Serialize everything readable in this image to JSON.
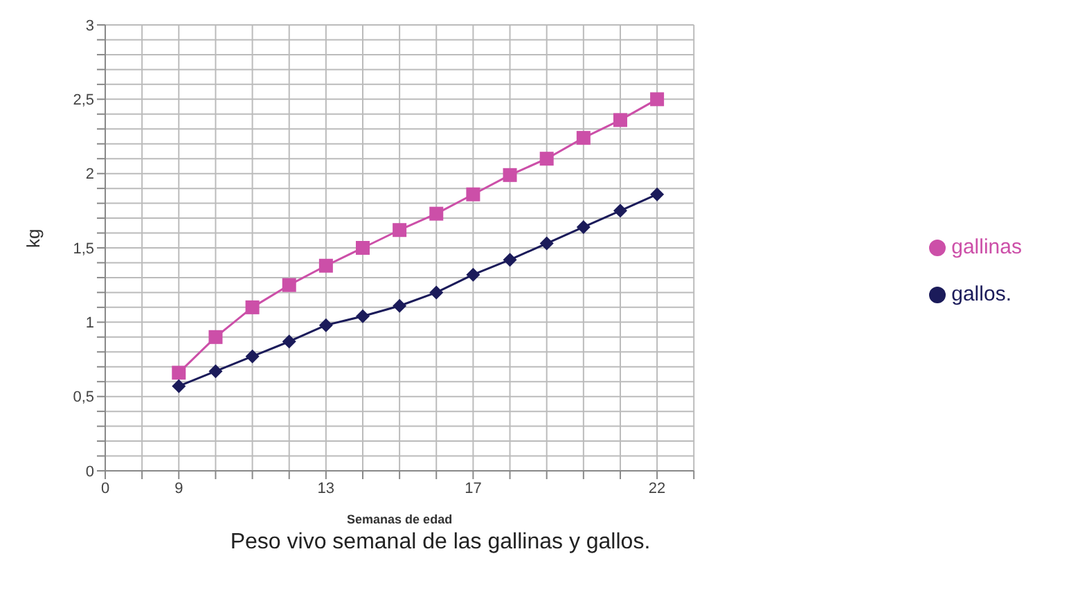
{
  "chart_data": {
    "type": "line",
    "title": "Peso vivo semanal de las gallinas y gallos.",
    "xlabel": "Semanas de edad",
    "ylabel": "kg",
    "categories": [
      "0",
      null,
      "9",
      null,
      null,
      null,
      "13",
      null,
      null,
      null,
      "17",
      null,
      null,
      null,
      null,
      "22"
    ],
    "series": [
      {
        "name": "gallinas",
        "color": "#cc4fa8",
        "marker": "square",
        "values": [
          null,
          null,
          0.66,
          0.9,
          1.1,
          1.25,
          1.38,
          1.5,
          1.62,
          1.73,
          1.86,
          1.99,
          2.1,
          2.24,
          2.36,
          2.5
        ]
      },
      {
        "name": "gallos.",
        "color": "#1b1b5a",
        "marker": "diamond",
        "values": [
          null,
          null,
          0.57,
          0.67,
          0.77,
          0.87,
          0.98,
          1.04,
          1.11,
          1.2,
          1.32,
          1.42,
          1.53,
          1.64,
          1.75,
          1.86
        ]
      }
    ],
    "ylim": [
      0,
      3
    ],
    "yticks": [
      0,
      {
        "value": 0.1,
        "label": null
      },
      {
        "value": 0.2,
        "label": null
      },
      {
        "value": 0.3,
        "label": null
      },
      {
        "value": 0.4,
        "label": null
      },
      {
        "value": 0.5,
        "label": "0,5"
      },
      {
        "value": 0.6,
        "label": null
      },
      {
        "value": 0.7,
        "label": null
      },
      {
        "value": 0.8,
        "label": null
      },
      {
        "value": 0.9,
        "label": null
      },
      1,
      {
        "value": 1.1,
        "label": null
      },
      {
        "value": 1.2,
        "label": null
      },
      {
        "value": 1.3,
        "label": null
      },
      {
        "value": 1.4,
        "label": null
      },
      {
        "value": 1.5,
        "label": "1,5"
      },
      {
        "value": 1.6,
        "label": null
      },
      {
        "value": 1.7,
        "label": null
      },
      {
        "value": 1.8,
        "label": null
      },
      {
        "value": 1.9,
        "label": null
      },
      2,
      {
        "value": 2.1,
        "label": null
      },
      {
        "value": 2.2,
        "label": null
      },
      {
        "value": 2.3,
        "label": null
      },
      {
        "value": 2.4,
        "label": null
      },
      {
        "value": 2.5,
        "label": "2,5"
      },
      {
        "value": 2.6,
        "label": null
      },
      {
        "value": 2.7,
        "label": null
      },
      {
        "value": 2.8,
        "label": null
      },
      {
        "value": 2.9,
        "label": null
      },
      3
    ],
    "grid": true,
    "legend": "right",
    "line_style": "solid"
  }
}
